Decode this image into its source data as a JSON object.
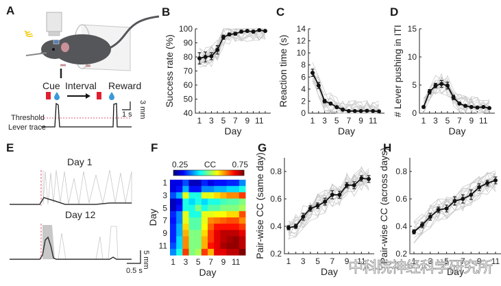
{
  "panels": {
    "A": {
      "letter": "A",
      "cue_label": "Cue",
      "interval_label": "Interval",
      "reward_label": "Reward",
      "threshold_label": "Threshold",
      "lever_trace_label": "Lever trace",
      "scale_time": "1 s",
      "scale_amp": "3 mm",
      "colors": {
        "cue": "#e02030",
        "water": "#3a9ad9",
        "threshold": "#e05a70"
      }
    },
    "E": {
      "letter": "E",
      "day1_label": "Day 1",
      "day12_label": "Day 12",
      "scale_time": "0.5 s",
      "scale_amp": "5 mm"
    }
  },
  "chart_data": [
    {
      "id": "B",
      "letter": "B",
      "type": "line",
      "xlabel": "Day",
      "ylabel": "Success rate (%)",
      "ylim": [
        40,
        100
      ],
      "yticks": [
        40,
        50,
        60,
        70,
        80,
        90,
        100
      ],
      "xlim": [
        0.5,
        12.5
      ],
      "xticks": [
        1,
        3,
        5,
        7,
        9,
        11
      ],
      "x": [
        1,
        2,
        3,
        4,
        5,
        6,
        7,
        8,
        9,
        10,
        11,
        12
      ],
      "series": [
        {
          "name": "mean",
          "values": [
            79,
            80,
            80.5,
            85,
            94,
            96,
            96.5,
            98,
            98.5,
            98,
            99,
            98.5
          ],
          "err": [
            4,
            3.5,
            2.5,
            3,
            1.5,
            1,
            1,
            1,
            0.8,
            1,
            0.5,
            0.5
          ]
        }
      ],
      "individual_traces": "gray, ~20 animals"
    },
    {
      "id": "C",
      "letter": "C",
      "type": "line",
      "xlabel": "Day",
      "ylabel": "Reaction time (s)",
      "ylim": [
        0,
        14
      ],
      "yticks": [
        0,
        2,
        4,
        6,
        8,
        10,
        12,
        14
      ],
      "xlim": [
        0.5,
        12.5
      ],
      "xticks": [
        1,
        3,
        5,
        7,
        9,
        11
      ],
      "x": [
        1,
        2,
        3,
        4,
        5,
        6,
        7,
        8,
        9,
        10,
        11,
        12
      ],
      "series": [
        {
          "name": "mean",
          "values": [
            6.7,
            4.6,
            2.0,
            1.6,
            1.0,
            0.6,
            0.35,
            0.35,
            0.35,
            0.4,
            0.35,
            0.3
          ],
          "err": [
            0.6,
            0.5,
            0.3,
            0.2,
            0.15,
            0.1,
            0.05,
            0.05,
            0.05,
            0.05,
            0.05,
            0.05
          ]
        }
      ]
    },
    {
      "id": "D",
      "letter": "D",
      "type": "line",
      "xlabel": "Day",
      "ylabel": "# Lever pushing in ITI",
      "ylim": [
        0,
        15
      ],
      "yticks": [
        0,
        5,
        10,
        15
      ],
      "xlim": [
        0.5,
        12.5
      ],
      "xticks": [
        1,
        3,
        5,
        7,
        9,
        11
      ],
      "x": [
        1,
        2,
        3,
        4,
        5,
        6,
        7,
        8,
        9,
        10,
        11,
        12
      ],
      "series": [
        {
          "name": "mean",
          "values": [
            1.1,
            3.8,
            4.9,
            5.2,
            4.9,
            2.8,
            1.7,
            1.3,
            1.1,
            1.0,
            1.1,
            0.9
          ],
          "err": [
            0.2,
            0.4,
            0.4,
            0.6,
            0.6,
            0.4,
            0.2,
            0.15,
            0.1,
            0.1,
            0.1,
            0.1
          ]
        }
      ]
    },
    {
      "id": "F",
      "letter": "F",
      "type": "heatmap",
      "xlabel": "Day",
      "ylabel": "Day",
      "colorbar_label": "CC",
      "colorbar_min": "0.25",
      "colorbar_max": "0.75",
      "vmin": 0.25,
      "vmax": 0.75,
      "xticks": [
        1,
        3,
        5,
        7,
        9,
        11
      ],
      "yticks": [
        1,
        3,
        5,
        7,
        9,
        11
      ],
      "matrix": [
        [
          0.3,
          0.3,
          0.35,
          0.28,
          0.28,
          0.33,
          0.3,
          0.32,
          0.32,
          0.33,
          0.33,
          0.38
        ],
        [
          0.3,
          0.32,
          0.4,
          0.32,
          0.32,
          0.38,
          0.38,
          0.4,
          0.4,
          0.42,
          0.42,
          0.45
        ],
        [
          0.35,
          0.4,
          0.55,
          0.45,
          0.45,
          0.55,
          0.55,
          0.58,
          0.6,
          0.62,
          0.62,
          0.66
        ],
        [
          0.28,
          0.3,
          0.45,
          0.42,
          0.45,
          0.42,
          0.45,
          0.45,
          0.47,
          0.48,
          0.48,
          0.5
        ],
        [
          0.28,
          0.32,
          0.45,
          0.45,
          0.5,
          0.45,
          0.48,
          0.48,
          0.5,
          0.5,
          0.5,
          0.52
        ],
        [
          0.33,
          0.38,
          0.55,
          0.45,
          0.45,
          0.55,
          0.55,
          0.56,
          0.56,
          0.58,
          0.58,
          0.65
        ],
        [
          0.32,
          0.38,
          0.55,
          0.48,
          0.48,
          0.55,
          0.62,
          0.63,
          0.64,
          0.65,
          0.65,
          0.62
        ],
        [
          0.33,
          0.4,
          0.58,
          0.48,
          0.48,
          0.56,
          0.64,
          0.68,
          0.68,
          0.68,
          0.68,
          0.66
        ],
        [
          0.33,
          0.4,
          0.6,
          0.5,
          0.5,
          0.58,
          0.66,
          0.7,
          0.72,
          0.72,
          0.72,
          0.7
        ],
        [
          0.33,
          0.42,
          0.62,
          0.5,
          0.5,
          0.6,
          0.66,
          0.7,
          0.72,
          0.73,
          0.74,
          0.72
        ],
        [
          0.35,
          0.42,
          0.62,
          0.5,
          0.5,
          0.6,
          0.68,
          0.7,
          0.73,
          0.74,
          0.74,
          0.72
        ],
        [
          0.38,
          0.45,
          0.66,
          0.5,
          0.52,
          0.66,
          0.6,
          0.7,
          0.7,
          0.72,
          0.72,
          0.75
        ]
      ]
    },
    {
      "id": "G",
      "letter": "G",
      "type": "line",
      "xlabel": "Day",
      "ylabel": "Pair-wise CC (same day)",
      "ylim": [
        0.2,
        0.9
      ],
      "yticks": [
        0.2,
        0.4,
        0.6,
        0.8
      ],
      "xlim": [
        0.5,
        12.5
      ],
      "xticks": [
        1,
        3,
        5,
        7,
        9,
        11
      ],
      "x": [
        1,
        2,
        3,
        4,
        5,
        6,
        7,
        8,
        9,
        10,
        11,
        12
      ],
      "series": [
        {
          "name": "mean",
          "values": [
            0.39,
            0.4,
            0.47,
            0.53,
            0.55,
            0.58,
            0.63,
            0.63,
            0.7,
            0.7,
            0.75,
            0.745
          ],
          "err": [
            0.015,
            0.015,
            0.025,
            0.02,
            0.02,
            0.025,
            0.03,
            0.025,
            0.02,
            0.025,
            0.02,
            0.025
          ]
        }
      ]
    },
    {
      "id": "H",
      "letter": "H",
      "type": "line",
      "xlabel": "Day",
      "ylabel": "Pair-wise CC (across days)",
      "ylim": [
        0.2,
        0.9
      ],
      "yticks": [
        0.2,
        0.4,
        0.6,
        0.8
      ],
      "xlim": [
        0.5,
        11.5
      ],
      "xticks": [
        1,
        3,
        5,
        7,
        9,
        11
      ],
      "x": [
        1,
        2,
        3,
        4,
        5,
        6,
        7,
        8,
        9,
        10,
        11
      ],
      "series": [
        {
          "name": "mean",
          "values": [
            0.36,
            0.41,
            0.47,
            0.52,
            0.53,
            0.585,
            0.6,
            0.63,
            0.685,
            0.715,
            0.735
          ],
          "err": [
            0.015,
            0.02,
            0.025,
            0.02,
            0.025,
            0.03,
            0.03,
            0.035,
            0.025,
            0.02,
            0.025
          ]
        }
      ]
    }
  ],
  "watermark": "中科院神经科学研究所"
}
